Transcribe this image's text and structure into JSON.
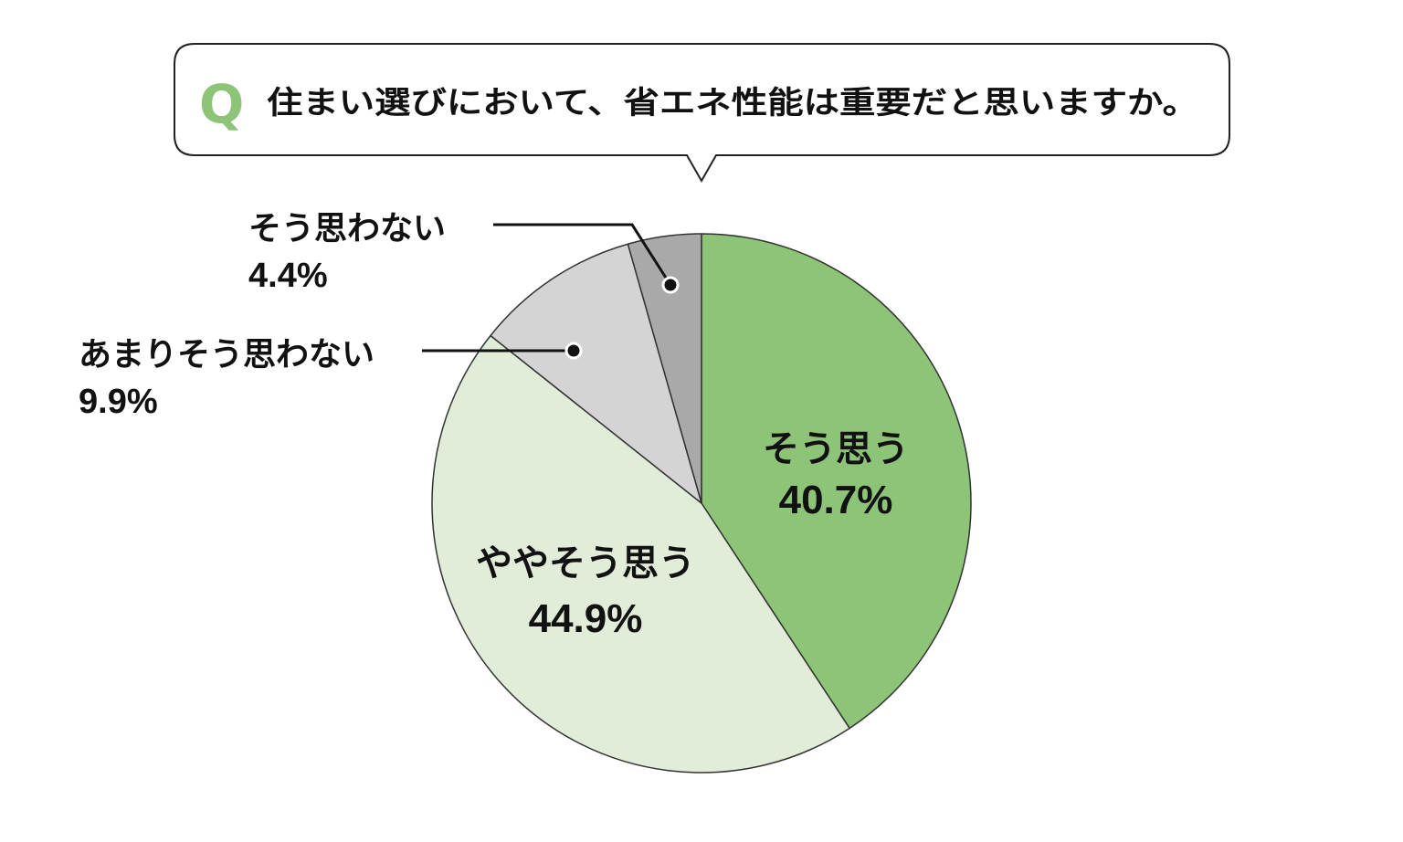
{
  "question": {
    "marker": "Q",
    "text": "住まい選びにおいて、省エネ性能は重要だと思いますか。"
  },
  "colors": {
    "accent": "#8dc478",
    "outline": "#333333",
    "bubble_border": "#222222",
    "text": "#111111"
  },
  "chart_data": {
    "type": "pie",
    "title": "住まい選びにおいて、省エネ性能は重要だと思いますか。",
    "start": "12 o'clock",
    "direction": "clockwise",
    "unit": "%",
    "slices": [
      {
        "label": "そう思う",
        "value": 40.7,
        "value_label": "40.7%",
        "color": "#8dc478"
      },
      {
        "label": "ややそう思う",
        "value": 44.9,
        "value_label": "44.9%",
        "color": "#e1edd8"
      },
      {
        "label": "あまりそう思わない",
        "value": 9.9,
        "value_label": "9.9%",
        "color": "#d4d4d4"
      },
      {
        "label": "そう思わない",
        "value": 4.4,
        "value_label": "4.4%",
        "color": "#a9a9a9"
      }
    ]
  }
}
